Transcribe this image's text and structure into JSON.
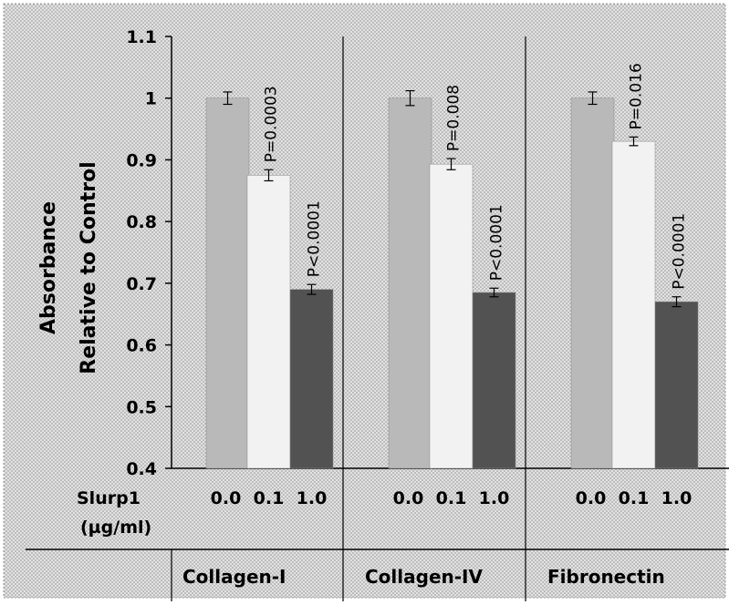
{
  "chart_data": {
    "type": "bar",
    "ylabel_lines": [
      "Absorbance",
      "Relative to Control"
    ],
    "ylim": [
      0.4,
      1.1
    ],
    "yticks": [
      "0.4",
      "0.5",
      "0.6",
      "0.7",
      "0.8",
      "0.9",
      "1",
      "1.1"
    ],
    "grid": false,
    "condition_label_lines": [
      "Slurp1",
      "(µg/ml)"
    ],
    "groups": [
      {
        "name": "Collagen-I",
        "bars": [
          {
            "condition": "0.0",
            "value": 1.0,
            "error": 0.01,
            "pvalue": ""
          },
          {
            "condition": "0.1",
            "value": 0.875,
            "error": 0.009,
            "pvalue": "P=0.0003"
          },
          {
            "condition": "1.0",
            "value": 0.69,
            "error": 0.008,
            "pvalue": "P<0.0001"
          }
        ]
      },
      {
        "name": "Collagen-IV",
        "bars": [
          {
            "condition": "0.0",
            "value": 1.0,
            "error": 0.012,
            "pvalue": ""
          },
          {
            "condition": "0.1",
            "value": 0.893,
            "error": 0.009,
            "pvalue": "P=0.008"
          },
          {
            "condition": "1.0",
            "value": 0.685,
            "error": 0.007,
            "pvalue": "P<0.0001"
          }
        ]
      },
      {
        "name": "Fibronectin",
        "bars": [
          {
            "condition": "0.0",
            "value": 1.0,
            "error": 0.01,
            "pvalue": ""
          },
          {
            "condition": "0.1",
            "value": 0.93,
            "error": 0.007,
            "pvalue": "P=0.016"
          },
          {
            "condition": "1.0",
            "value": 0.67,
            "error": 0.008,
            "pvalue": "P<0.0001"
          }
        ]
      }
    ],
    "colors": {
      "background": "#d4d4d4",
      "bar_0.0": "#b9b9b9",
      "bar_0.1": "#f2f2f2",
      "bar_1.0": "#525252",
      "lines": "#000000"
    }
  }
}
